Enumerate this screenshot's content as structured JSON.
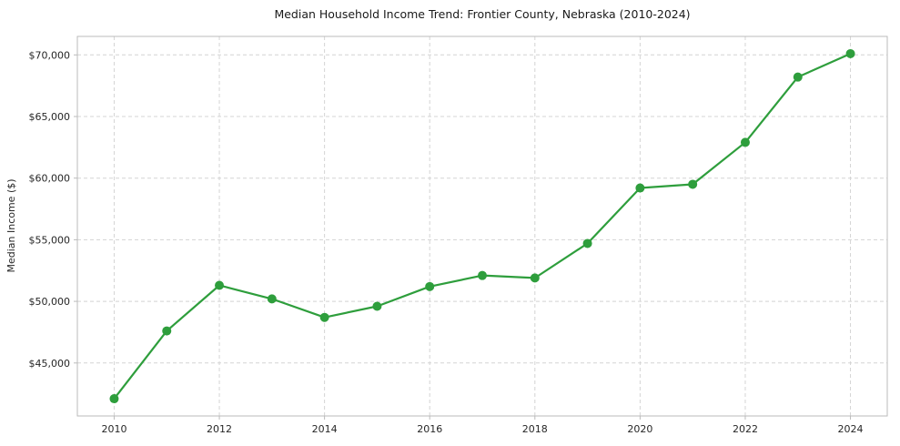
{
  "chart_data": {
    "type": "line",
    "title": "Median Household Income Trend: Frontier County, Nebraska (2010-2024)",
    "xlabel": "",
    "ylabel": "Median Income ($)",
    "x": [
      2010,
      2011,
      2012,
      2013,
      2014,
      2015,
      2016,
      2017,
      2018,
      2019,
      2020,
      2021,
      2022,
      2023,
      2024
    ],
    "series": [
      {
        "name": "Median Household Income",
        "values": [
          42100,
          47600,
          51300,
          50200,
          48700,
          49600,
          51200,
          52100,
          51900,
          54700,
          59200,
          59500,
          62900,
          68200,
          70100
        ],
        "color": "#2e9e3c"
      }
    ],
    "xlim": [
      2009.3,
      2024.7
    ],
    "ylim": [
      40700,
      71500
    ],
    "xticks": [
      {
        "value": 2010,
        "label": "2010"
      },
      {
        "value": 2012,
        "label": "2012"
      },
      {
        "value": 2014,
        "label": "2014"
      },
      {
        "value": 2016,
        "label": "2016"
      },
      {
        "value": 2018,
        "label": "2018"
      },
      {
        "value": 2020,
        "label": "2020"
      },
      {
        "value": 2022,
        "label": "2022"
      },
      {
        "value": 2024,
        "label": "2024"
      }
    ],
    "yticks": [
      {
        "value": 45000,
        "label": "$45,000"
      },
      {
        "value": 50000,
        "label": "$50,000"
      },
      {
        "value": 55000,
        "label": "$55,000"
      },
      {
        "value": 60000,
        "label": "$60,000"
      },
      {
        "value": 65000,
        "label": "$65,000"
      },
      {
        "value": 70000,
        "label": "$70,000"
      }
    ],
    "grid": true,
    "grid_style": "dashed",
    "legend": "none",
    "background": "#ffffff",
    "grid_color": "#d4d4d4",
    "spine_color": "#bbbbbb"
  }
}
